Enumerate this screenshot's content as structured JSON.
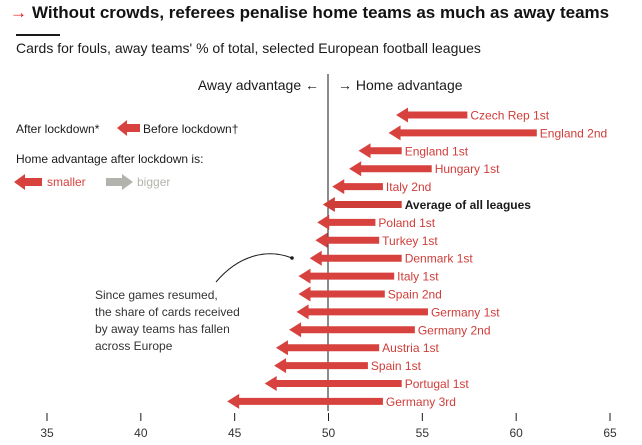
{
  "title": "Without crowds, referees penalise home teams as much as away teams",
  "subtitle": "Cards for fouls, away teams' % of total, selected European football leagues",
  "colors": {
    "red": "#d7423e",
    "grey": "#b3b3ad",
    "accent": "#e3120b",
    "text": "#1a1a1a"
  },
  "legend": {
    "after": "After lockdown*",
    "before": "Before lockdown†",
    "heading": "Home advantage after lockdown is:",
    "smaller": "smaller",
    "bigger": "bigger"
  },
  "direction": {
    "away": "Away advantage ←",
    "home": "→ Home advantage"
  },
  "annotation": [
    "Since games resumed,",
    "the share of cards received",
    "by away teams has fallen",
    "across Europe"
  ],
  "chart_data": {
    "type": "bar",
    "orientation": "horizontal-arrows",
    "title": "Without crowds, referees penalise home teams as much as away teams",
    "subtitle": "Cards for fouls, away teams' % of total, selected European football leagues",
    "x_axis": {
      "min": 35,
      "max": 65,
      "ticks": [
        35,
        40,
        45,
        50,
        55,
        60,
        65
      ],
      "reference": 50
    },
    "series": [
      {
        "name": "Before lockdown†"
      },
      {
        "name": "After lockdown*"
      }
    ],
    "categories": [
      "Czech Rep 1st",
      "England 2nd",
      "England 1st",
      "Hungary 1st",
      "Italy 2nd",
      "Average of all leagues",
      "Poland 1st",
      "Turkey 1st",
      "Denmark 1st",
      "Italy 1st",
      "Spain 2nd",
      "Germany 1st",
      "Germany 2nd",
      "Austria 1st",
      "Spain 1st",
      "Portugal 1st",
      "Germany 3rd"
    ],
    "rows": [
      {
        "label": "Czech Rep 1st",
        "before": 57.4,
        "after": 53.6
      },
      {
        "label": "England 2nd",
        "before": 61.1,
        "after": 53.2
      },
      {
        "label": "England 1st",
        "before": 53.9,
        "after": 51.6
      },
      {
        "label": "Hungary 1st",
        "before": 55.5,
        "after": 51.1
      },
      {
        "label": "Italy 2nd",
        "before": 52.9,
        "after": 50.2
      },
      {
        "label": "Average of all leagues",
        "before": 53.9,
        "after": 49.7
      },
      {
        "label": "Poland 1st",
        "before": 52.5,
        "after": 49.4
      },
      {
        "label": "Turkey 1st",
        "before": 52.7,
        "after": 49.3
      },
      {
        "label": "Denmark 1st",
        "before": 53.9,
        "after": 49.0
      },
      {
        "label": "Italy 1st",
        "before": 53.5,
        "after": 48.4
      },
      {
        "label": "Spain 2nd",
        "before": 53.0,
        "after": 48.4
      },
      {
        "label": "Germany 1st",
        "before": 55.3,
        "after": 48.3
      },
      {
        "label": "Germany 2nd",
        "before": 54.6,
        "after": 47.9
      },
      {
        "label": "Austria 1st",
        "before": 52.7,
        "after": 47.2
      },
      {
        "label": "Spain 1st",
        "before": 52.1,
        "after": 47.1
      },
      {
        "label": "Portugal 1st",
        "before": 53.9,
        "after": 46.6
      },
      {
        "label": "Germany 3rd",
        "before": 52.9,
        "after": 44.6
      }
    ]
  }
}
